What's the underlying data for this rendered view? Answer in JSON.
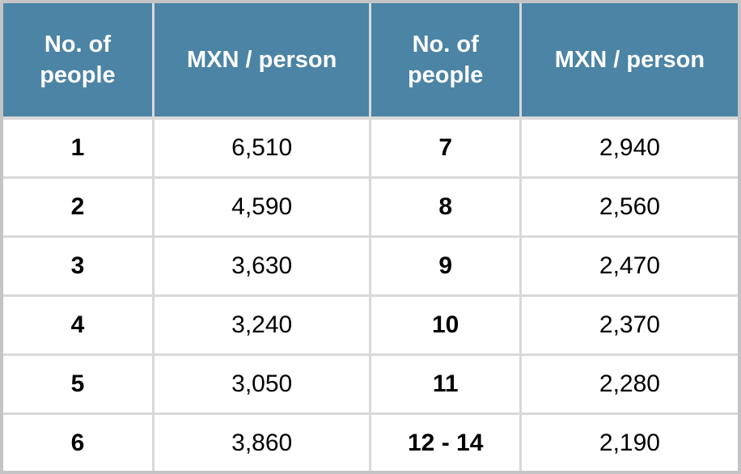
{
  "chart_data": {
    "type": "table",
    "columns": [
      "No. of people",
      "MXN / person",
      "No. of people",
      "MXN / person"
    ],
    "rows": [
      [
        "1",
        "6,510",
        "7",
        "2,940"
      ],
      [
        "2",
        "4,590",
        "8",
        "2,560"
      ],
      [
        "3",
        "3,630",
        "9",
        "2,470"
      ],
      [
        "4",
        "3,240",
        "10",
        "2,370"
      ],
      [
        "5",
        "3,050",
        "11",
        "2,280"
      ],
      [
        "6",
        "3,860",
        "12 - 14",
        "2,190"
      ]
    ]
  },
  "colors": {
    "header_bg": "#4B84A4",
    "header_text": "#FFFFFF",
    "grid_line": "#D9D9D9",
    "outer_border": "#C4C4C6",
    "cell_text": "#000000",
    "cell_bg": "#FFFFFF"
  }
}
